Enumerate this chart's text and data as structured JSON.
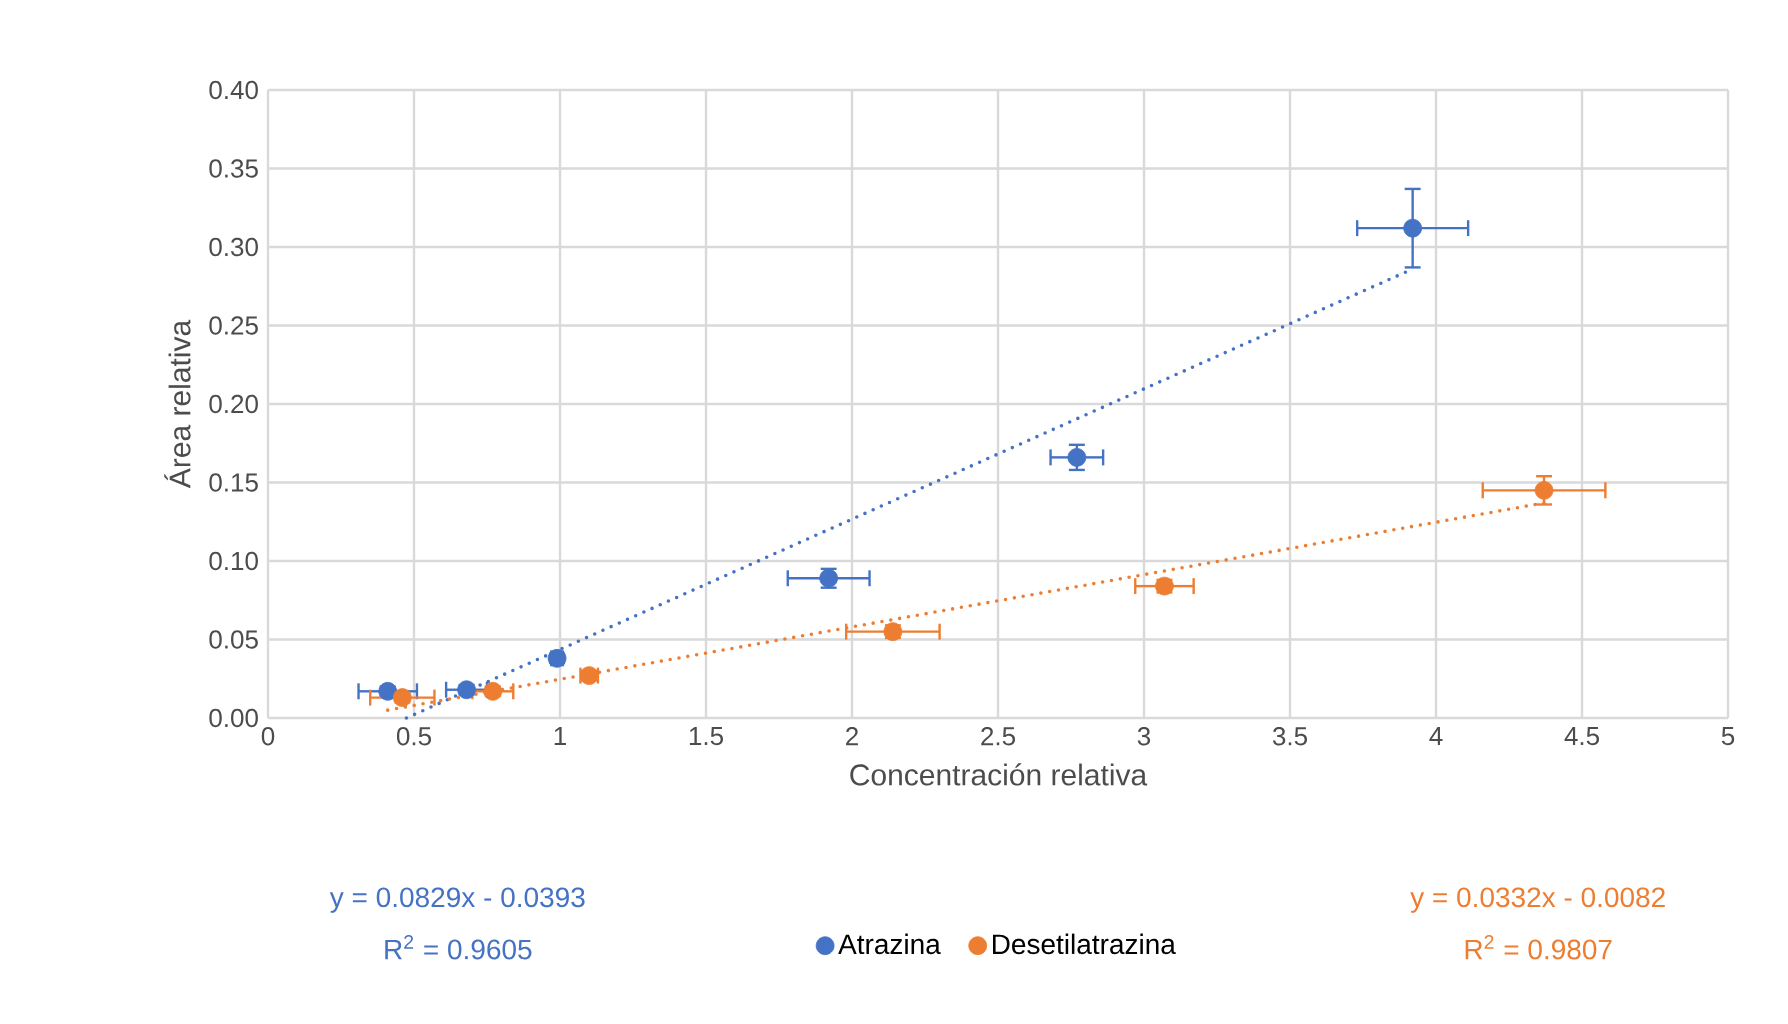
{
  "chart_data": {
    "type": "scatter",
    "xlabel": "Concentración relativa",
    "ylabel": "Área relativa",
    "xlim": [
      0,
      5
    ],
    "xticks": [
      0,
      0.5,
      1,
      1.5,
      2,
      2.5,
      3,
      3.5,
      4,
      4.5,
      5
    ],
    "ylim": [
      0,
      0.4
    ],
    "yticks": [
      {
        "value": 0,
        "label": "0.00"
      },
      {
        "value": 0.05,
        "label": "0.05"
      },
      {
        "value": 0.1,
        "label": "0.10"
      },
      {
        "value": 0.15,
        "label": "0.15"
      },
      {
        "value": 0.2,
        "label": "0.20"
      },
      {
        "value": 0.25,
        "label": "0.25"
      },
      {
        "value": 0.3,
        "label": "0.30"
      },
      {
        "value": 0.35,
        "label": "0.35"
      },
      {
        "value": 0.4,
        "label": "0.40"
      }
    ],
    "grid": true,
    "legend": "bottom",
    "marker": "circle",
    "series": [
      {
        "name": "Atrazina",
        "color": "#4472c4",
        "x": [
          0.41,
          0.68,
          0.99,
          1.92,
          2.77,
          3.92
        ],
        "values": [
          0.017,
          0.018,
          0.038,
          0.089,
          0.166,
          0.312
        ],
        "errors": [
          0.003,
          0.003,
          0.003,
          0.006,
          0.008,
          0.025
        ],
        "xerrors": [
          0.1,
          0.07,
          0.02,
          0.14,
          0.09,
          0.19
        ]
      },
      {
        "name": "Desetilatrazina",
        "color": "#ed7d31",
        "x": [
          0.46,
          0.77,
          1.1,
          2.14,
          3.07,
          4.37
        ],
        "values": [
          0.013,
          0.017,
          0.027,
          0.055,
          0.084,
          0.145
        ],
        "errors": [
          0.003,
          0.003,
          0.003,
          0.004,
          0.004,
          0.009
        ],
        "xerrors": [
          0.11,
          0.07,
          0.03,
          0.16,
          0.1,
          0.21
        ]
      },
      {
        "type": "line",
        "color": "#4472c4",
        "line_style": "dotted",
        "marker": "none",
        "x": [
          0.474,
          3.92
        ],
        "values": [
          0,
          0.286
        ]
      },
      {
        "type": "line",
        "color": "#ed7d31",
        "line_style": "dotted",
        "marker": "none",
        "x": [
          0.41,
          4.37
        ],
        "values": [
          0.005,
          0.137
        ]
      }
    ],
    "annotations": [
      "y = 0.0829x - 0.0393",
      "R$^{2}$ = 0.9605",
      "y = 0.0332x - 0.0082",
      "R$^{2}$ = 0.9807"
    ]
  }
}
